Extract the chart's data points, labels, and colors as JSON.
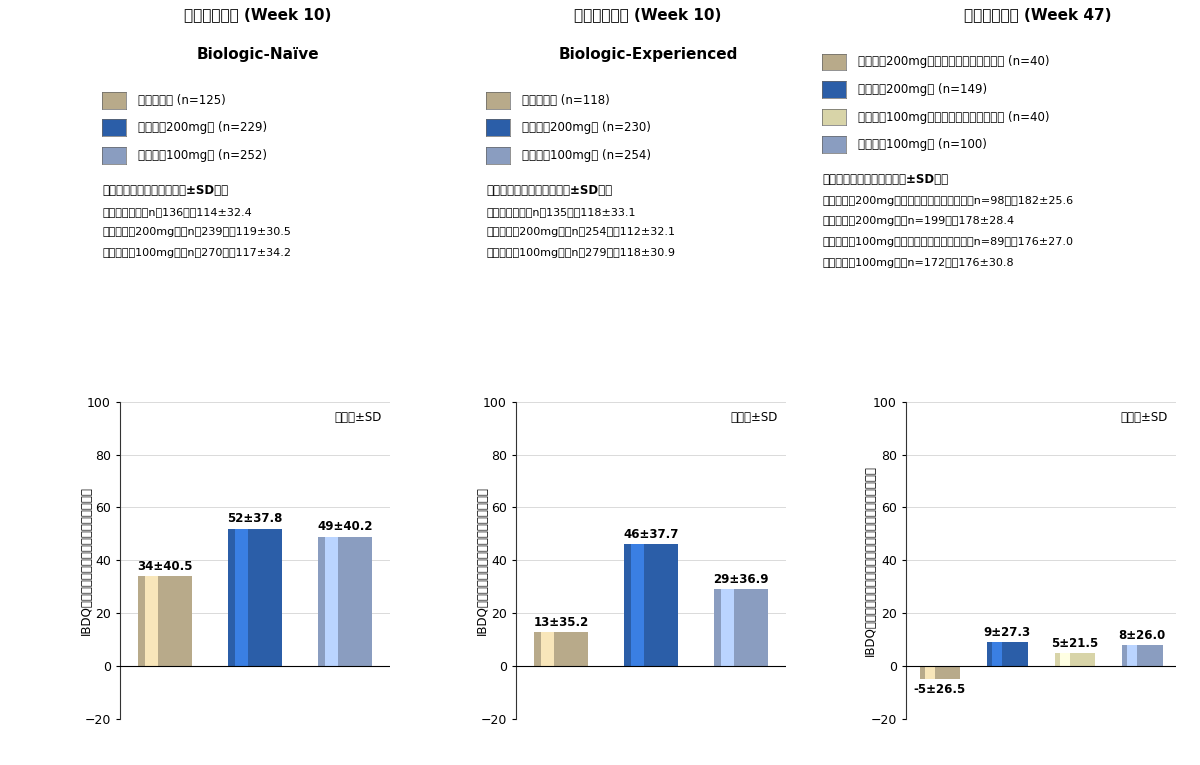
{
  "panels": [
    {
      "title_line1": "寛解導入試験 (Week 10)",
      "title_line2": "Biologic-Naïve",
      "legend": [
        {
          "label": "プラセボ群 (n=125)",
          "color": "#b8aa8a"
        },
        {
          "label": "ジセレカ200mg群 (n=229)",
          "color": "#2b5ea8"
        },
        {
          "label": "ジセレカ100mg群 (n=252)",
          "color": "#8a9dc0"
        }
      ],
      "baseline_title": "《ベースライン値（平均値±SD）》",
      "baseline_lines": [
        "・プラセボ群（n＝136）：114±32.4",
        "・ジセレカ200mg群（n＝239）：119±30.5",
        "・ジセレカ100mg群（n＝270）：117±34.2"
      ],
      "bars": [
        {
          "value": 34,
          "label": "34±40.5",
          "color": "#b8aa8a"
        },
        {
          "value": 52,
          "label": "52±37.8",
          "color": "#2b5ea8"
        },
        {
          "value": 49,
          "label": "49±40.2",
          "color": "#8a9dc0"
        }
      ],
      "ylabel": "IBDQ総スコアのベースラインからの変化量",
      "note": "平均値±SD",
      "ylim": [
        -20,
        100
      ],
      "yticks": [
        -20,
        0,
        20,
        40,
        60,
        80,
        100
      ]
    },
    {
      "title_line1": "寛解導入試験 (Week 10)",
      "title_line2": "Biologic-Experienced",
      "legend": [
        {
          "label": "プラセボ群 (n=118)",
          "color": "#b8aa8a"
        },
        {
          "label": "ジセレカ200mg群 (n=230)",
          "color": "#2b5ea8"
        },
        {
          "label": "ジセレカ100mg群 (n=254)",
          "color": "#8a9dc0"
        }
      ],
      "baseline_title": "《ベースライン値（平均値±SD）》",
      "baseline_lines": [
        "・プラセボ群（n＝135）：118±33.1",
        "・ジセレカ200mg群（n＝254）：112±32.1",
        "・ジセレカ100mg群（n＝279）：118±30.9"
      ],
      "bars": [
        {
          "value": 13,
          "label": "13±35.2",
          "color": "#b8aa8a"
        },
        {
          "value": 46,
          "label": "46±37.7",
          "color": "#2b5ea8"
        },
        {
          "value": 29,
          "label": "29±36.9",
          "color": "#8a9dc0"
        }
      ],
      "ylabel": "IBDQ総スコアのベースラインからの変化量",
      "note": "平均値±SD",
      "ylim": [
        -20,
        100
      ],
      "yticks": [
        -20,
        0,
        20,
        40,
        60,
        80,
        100
      ]
    },
    {
      "title_line1": "寛解維持試験 (Week 47)",
      "title_line2": null,
      "legend": [
        {
          "label": "ジセレカ200mgからのプラセボ切替え群 (n=40)",
          "color": "#b8aa8a"
        },
        {
          "label": "ジセレカ200mg群 (n=149)",
          "color": "#2b5ea8"
        },
        {
          "label": "ジセレカ100mgからのプラセボ切替え群 (n=40)",
          "color": "#d8d4a8"
        },
        {
          "label": "ジセレカ100mg群 (n=100)",
          "color": "#8a9dc0"
        }
      ],
      "baseline_title": "《ベースライン値（平均値±SD）》",
      "baseline_lines": [
        "・ジセレカ200mgからのプラセボ切替え群（n=98）：182±25.6",
        "・ジセレカ200mg群（n=199）：178±28.4",
        "・ジセレカ100mgからのプラセボ切替え群（n=89）：176±27.0",
        "・ジセレカ100mg群（n=172）：176±30.8"
      ],
      "bars": [
        {
          "value": -5,
          "label": "-5±26.5",
          "color": "#b8aa8a"
        },
        {
          "value": 9,
          "label": "9±27.3",
          "color": "#2b5ea8"
        },
        {
          "value": 5,
          "label": "5±21.5",
          "color": "#d8d4a8"
        },
        {
          "value": 8,
          "label": "8±26.0",
          "color": "#8a9dc0"
        }
      ],
      "ylabel": "IBDQ総スコアの寛解維持試験ベースラインからの変化量",
      "note": "平均値±SD",
      "ylim": [
        -20,
        100
      ],
      "yticks": [
        -20,
        0,
        20,
        40,
        60,
        80,
        100
      ]
    }
  ],
  "fig_width": 12.0,
  "fig_height": 7.65,
  "bg_color": "#ffffff"
}
